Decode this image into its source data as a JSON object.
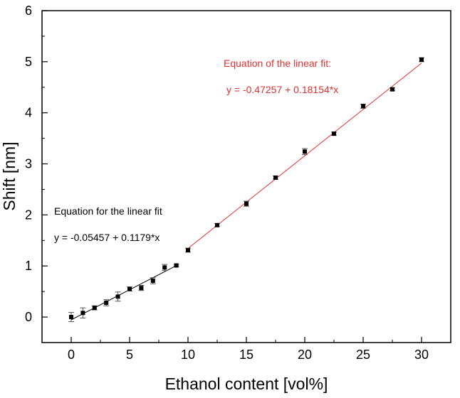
{
  "chart_data": {
    "type": "scatter",
    "xlabel": "Ethanol content [vol%]",
    "ylabel": "Shift [nm]",
    "xlim": [
      -2.5,
      32.5
    ],
    "ylim": [
      -0.5,
      6
    ],
    "xticks": [
      0,
      5,
      10,
      15,
      20,
      25,
      30
    ],
    "yticks": [
      0,
      1,
      2,
      3,
      4,
      5,
      6
    ],
    "grid": false,
    "series": [
      {
        "color": "#000000",
        "x": [
          0,
          1,
          2,
          3,
          4,
          5,
          6,
          7,
          8,
          9
        ],
        "y": [
          0.0,
          0.08,
          0.18,
          0.28,
          0.4,
          0.55,
          0.57,
          0.71,
          0.97,
          1.01
        ],
        "err": [
          0.09,
          0.1,
          0.04,
          0.06,
          0.09,
          0.04,
          0.05,
          0.06,
          0.06,
          0.02
        ],
        "fit": {
          "intercept": -0.05457,
          "slope": 0.1179,
          "x_range": [
            0,
            9
          ],
          "color": "#000000"
        }
      },
      {
        "color": "#000000",
        "x": [
          10,
          12.5,
          15,
          17.5,
          20,
          22.5,
          25,
          27.5,
          30
        ],
        "y": [
          1.31,
          1.8,
          2.22,
          2.73,
          3.24,
          3.59,
          4.13,
          4.46,
          5.04
        ],
        "err": [
          0.04,
          0.03,
          0.05,
          0.03,
          0.06,
          0.03,
          0.04,
          0.03,
          0.04
        ],
        "fit": {
          "intercept": -0.47257,
          "slope": 0.18154,
          "x_range": [
            10,
            30
          ],
          "color": "#e03030"
        }
      }
    ],
    "annotations": [
      {
        "line1": "Equation for the linear fit",
        "line2": "y = -0.05457 + 0.1179*x",
        "color": "#000000"
      },
      {
        "line1": "Equation of the linear fit:",
        "line2": "y = -0.47257 + 0.18154*x",
        "color": "#e03030"
      }
    ]
  }
}
